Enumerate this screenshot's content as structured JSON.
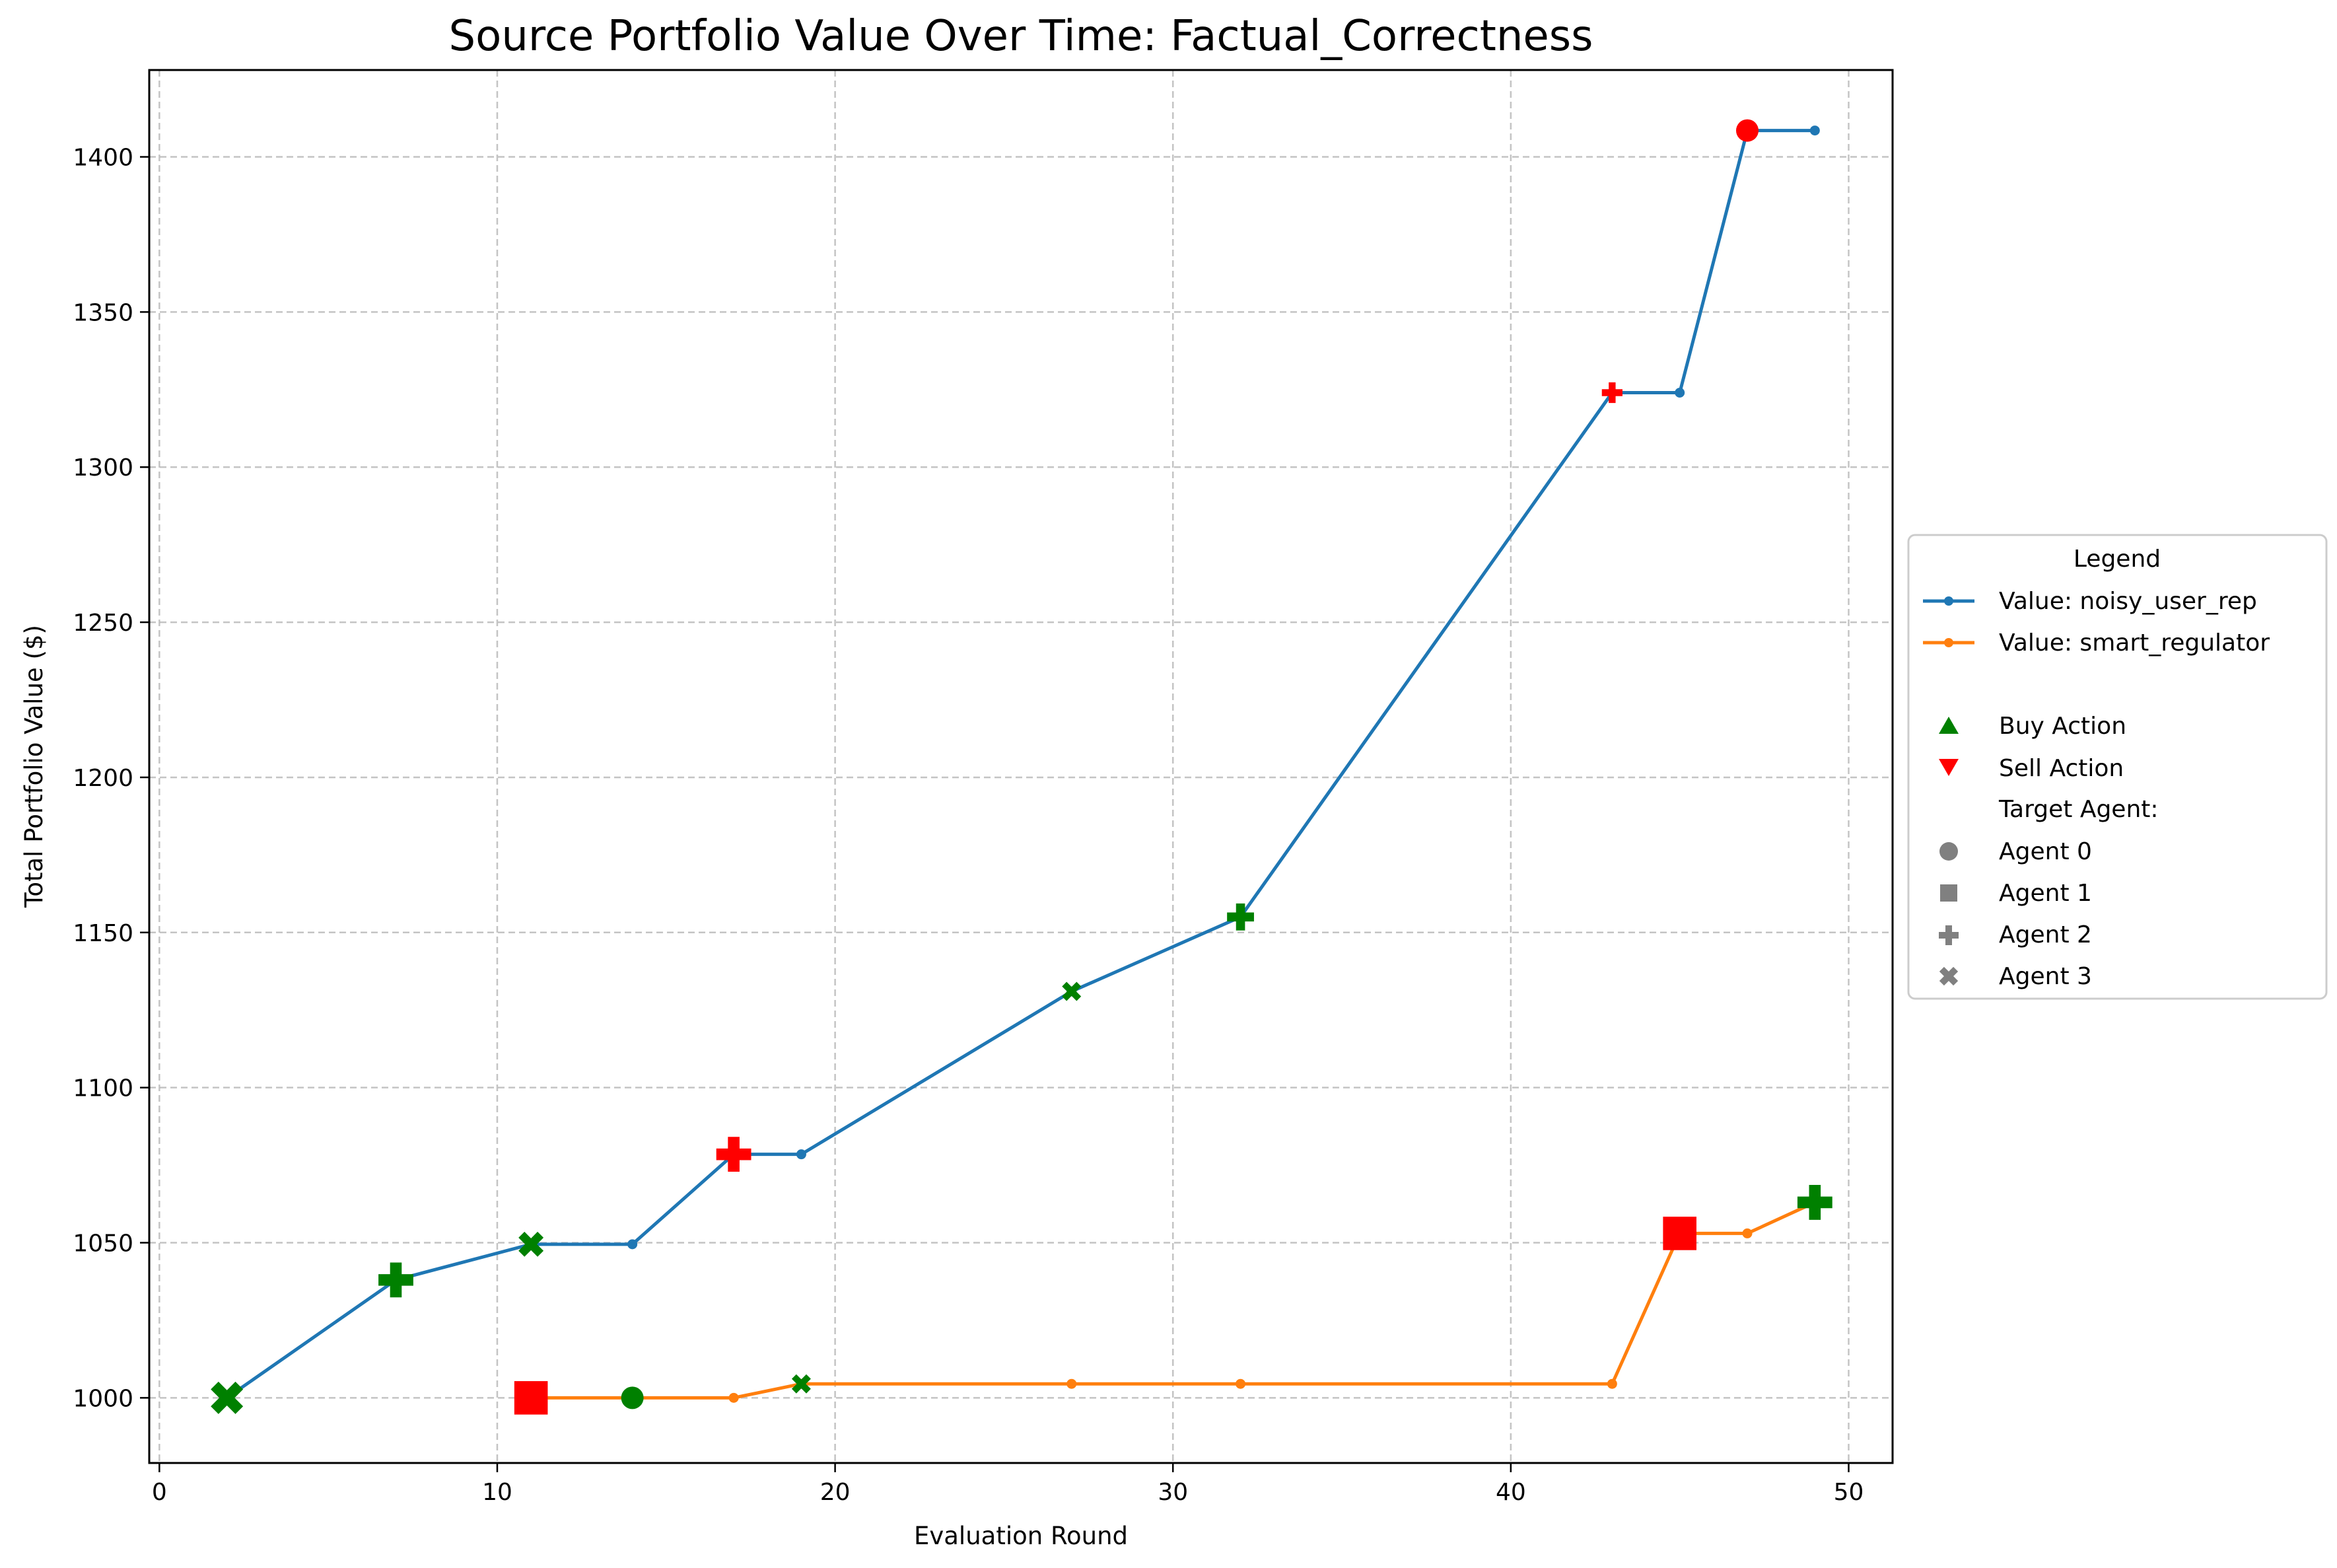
{
  "chart_data": {
    "type": "line",
    "title": "Source Portfolio Value Over Time: Factual_Correctness",
    "xlabel": "Evaluation Round",
    "ylabel": "Total Portfolio Value ($)",
    "xlim": [
      -0.3,
      51.3
    ],
    "ylim": [
      979,
      1428
    ],
    "xticks": [
      0,
      10,
      20,
      30,
      40,
      50
    ],
    "yticks": [
      1000,
      1050,
      1100,
      1150,
      1200,
      1250,
      1300,
      1350,
      1400
    ],
    "grid": true,
    "legend_position": "right",
    "legend": {
      "title": "Legend",
      "series_entries": [
        "Value: noisy_user_rep",
        "Value: smart_regulator"
      ],
      "action_entries": [
        {
          "label": "Buy Action",
          "color": "#008000",
          "marker": "triangle-up-icon"
        },
        {
          "label": "Sell Action",
          "color": "#ff0000",
          "marker": "triangle-down-icon"
        }
      ],
      "target_title": "Target Agent:",
      "target_entries": [
        {
          "label": "Agent 0",
          "marker": "circle-icon"
        },
        {
          "label": "Agent 1",
          "marker": "square-icon"
        },
        {
          "label": "Agent 2",
          "marker": "plus-icon"
        },
        {
          "label": "Agent 3",
          "marker": "x-icon"
        }
      ]
    },
    "series": [
      {
        "name": "Value: noisy_user_rep",
        "color": "#1f77b4",
        "x": [
          2,
          7,
          11,
          14,
          17,
          19,
          27,
          32,
          43,
          45,
          47,
          49
        ],
        "y": [
          1000,
          1038,
          1049.5,
          1049.5,
          1078.5,
          1078.5,
          1131,
          1155,
          1324,
          1324,
          1408.5,
          1408.5
        ]
      },
      {
        "name": "Value: smart_regulator",
        "color": "#ff7f0e",
        "x": [
          11,
          14,
          17,
          19,
          27,
          32,
          43,
          45,
          47,
          49
        ],
        "y": [
          1000,
          1000,
          1000,
          1004.5,
          1004.5,
          1004.5,
          1004.5,
          1053,
          1053,
          1063
        ]
      }
    ],
    "actions": [
      {
        "x": 2,
        "y": 1000,
        "action": "buy",
        "target": "Agent 3",
        "size": "large"
      },
      {
        "x": 7,
        "y": 1038,
        "action": "buy",
        "target": "Agent 2",
        "size": "large"
      },
      {
        "x": 11,
        "y": 1049.5,
        "action": "buy",
        "target": "Agent 3",
        "size": "medium"
      },
      {
        "x": 17,
        "y": 1078.5,
        "action": "sell",
        "target": "Agent 2",
        "size": "large"
      },
      {
        "x": 27,
        "y": 1131,
        "action": "buy",
        "target": "Agent 3",
        "size": "small"
      },
      {
        "x": 32,
        "y": 1155,
        "action": "buy",
        "target": "Agent 2",
        "size": "medium"
      },
      {
        "x": 43,
        "y": 1324,
        "action": "sell",
        "target": "Agent 2",
        "size": "small"
      },
      {
        "x": 47,
        "y": 1408.5,
        "action": "sell",
        "target": "Agent 0",
        "size": "medium"
      },
      {
        "x": 11,
        "y": 1000,
        "action": "sell",
        "target": "Agent 1",
        "size": "large"
      },
      {
        "x": 14,
        "y": 1000,
        "action": "buy",
        "target": "Agent 0",
        "size": "medium"
      },
      {
        "x": 19,
        "y": 1004.5,
        "action": "buy",
        "target": "Agent 3",
        "size": "small"
      },
      {
        "x": 45,
        "y": 1053,
        "action": "sell",
        "target": "Agent 1",
        "size": "large"
      },
      {
        "x": 49,
        "y": 1063,
        "action": "buy",
        "target": "Agent 2",
        "size": "large"
      }
    ]
  }
}
